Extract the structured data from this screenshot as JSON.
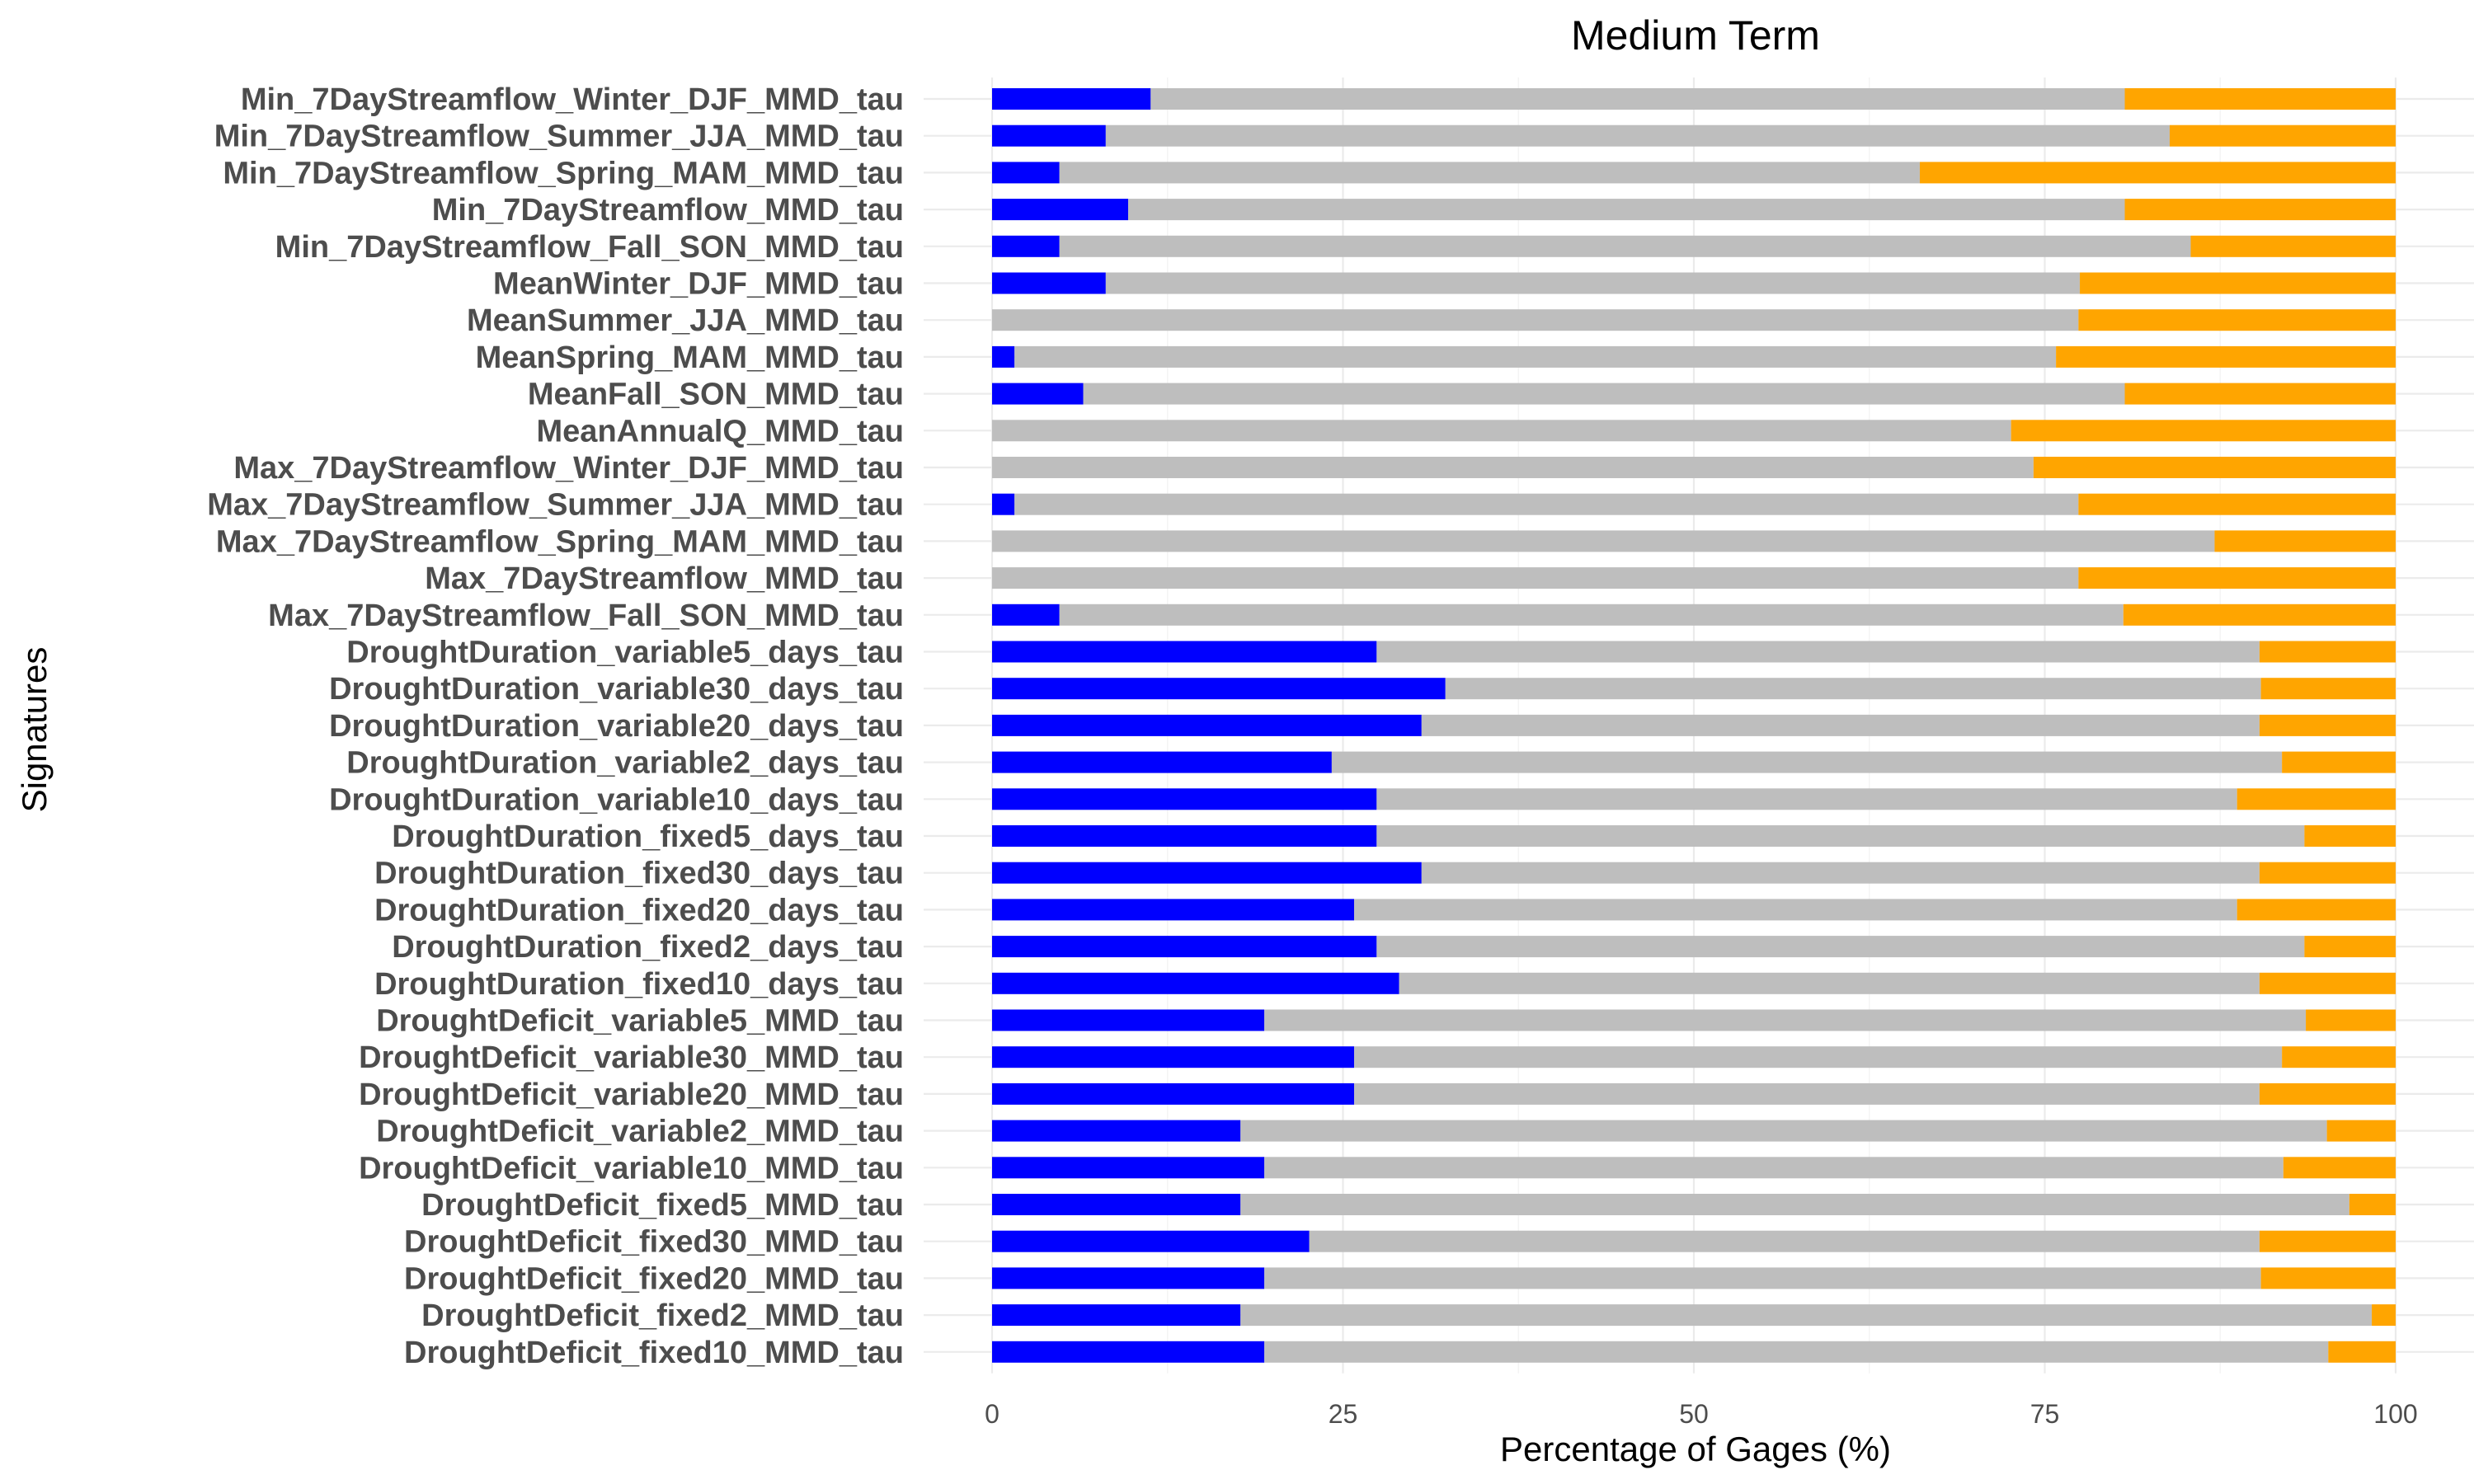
{
  "chart_data": {
    "type": "bar",
    "orientation": "horizontal",
    "stacked": true,
    "title": "Medium Term",
    "xlabel": "Percentage of Gages (%)",
    "ylabel": "Signatures",
    "xlim": [
      0,
      100
    ],
    "xticks": [
      0,
      25,
      50,
      75,
      100
    ],
    "grid": true,
    "legend": "none",
    "categories": [
      "Min_7DayStreamflow_Winter_DJF_MMD_tau",
      "Min_7DayStreamflow_Summer_JJA_MMD_tau",
      "Min_7DayStreamflow_Spring_MAM_MMD_tau",
      "Min_7DayStreamflow_MMD_tau",
      "Min_7DayStreamflow_Fall_SON_MMD_tau",
      "MeanWinter_DJF_MMD_tau",
      "MeanSummer_JJA_MMD_tau",
      "MeanSpring_MAM_MMD_tau",
      "MeanFall_SON_MMD_tau",
      "MeanAnnualQ_MMD_tau",
      "Max_7DayStreamflow_Winter_DJF_MMD_tau",
      "Max_7DayStreamflow_Summer_JJA_MMD_tau",
      "Max_7DayStreamflow_Spring_MAM_MMD_tau",
      "Max_7DayStreamflow_MMD_tau",
      "Max_7DayStreamflow_Fall_SON_MMD_tau",
      "DroughtDuration_variable5_days_tau",
      "DroughtDuration_variable30_days_tau",
      "DroughtDuration_variable20_days_tau",
      "DroughtDuration_variable2_days_tau",
      "DroughtDuration_variable10_days_tau",
      "DroughtDuration_fixed5_days_tau",
      "DroughtDuration_fixed30_days_tau",
      "DroughtDuration_fixed20_days_tau",
      "DroughtDuration_fixed2_days_tau",
      "DroughtDuration_fixed10_days_tau",
      "DroughtDeficit_variable5_MMD_tau",
      "DroughtDeficit_variable30_MMD_tau",
      "DroughtDeficit_variable20_MMD_tau",
      "DroughtDeficit_variable2_MMD_tau",
      "DroughtDeficit_variable10_MMD_tau",
      "DroughtDeficit_fixed5_MMD_tau",
      "DroughtDeficit_fixed30_MMD_tau",
      "DroughtDeficit_fixed20_MMD_tau",
      "DroughtDeficit_fixed2_MMD_tau",
      "DroughtDeficit_fixed10_MMD_tau"
    ],
    "series": [
      {
        "color": "#0000ff",
        "values": [
          11.3,
          8.1,
          4.8,
          9.7,
          4.8,
          8.1,
          0.0,
          1.6,
          6.5,
          0.0,
          0.0,
          1.6,
          0.0,
          0.0,
          4.8,
          27.4,
          32.3,
          30.6,
          24.2,
          27.4,
          27.4,
          30.6,
          25.8,
          27.4,
          29.0,
          19.4,
          25.8,
          25.8,
          17.7,
          19.4,
          17.7,
          22.6,
          19.4,
          17.7,
          19.4
        ]
      },
      {
        "color": "#bebebe",
        "values": [
          69.4,
          75.8,
          61.3,
          71.0,
          80.6,
          69.4,
          77.4,
          74.2,
          74.2,
          72.6,
          74.2,
          75.8,
          87.1,
          77.4,
          75.8,
          62.9,
          58.1,
          59.7,
          67.7,
          61.3,
          66.1,
          59.7,
          62.9,
          66.1,
          61.3,
          74.2,
          66.1,
          64.5,
          77.4,
          72.6,
          79.0,
          67.7,
          71.0,
          80.6,
          75.8
        ]
      },
      {
        "color": "#ffa500",
        "values": [
          19.3,
          16.1,
          33.9,
          19.3,
          14.6,
          22.5,
          22.6,
          24.2,
          19.3,
          27.4,
          25.8,
          22.6,
          12.9,
          22.6,
          19.4,
          9.7,
          9.6,
          9.7,
          8.1,
          11.3,
          6.5,
          9.7,
          11.3,
          6.5,
          9.7,
          6.4,
          8.1,
          9.7,
          4.9,
          8.0,
          3.3,
          9.7,
          9.6,
          1.7,
          4.8
        ]
      }
    ]
  }
}
